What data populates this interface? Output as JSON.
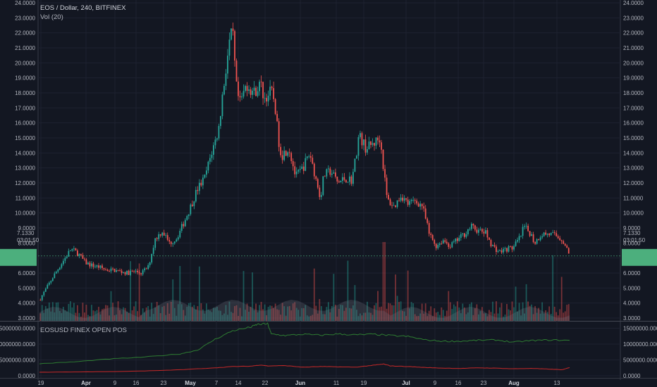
{
  "header": {
    "title": "EOS / Dollar, 240, BITFINEX",
    "indicator": "Vol (20)",
    "sub_indicator": "EOSUSD FINEX OPEN POS"
  },
  "price_labels": {
    "last_price": "7.1330",
    "countdown": "03:01:50"
  },
  "colors": {
    "up": "#26a69a",
    "down": "#ef5350",
    "background": "#131722",
    "grid": "#1e2230",
    "long_line": "#2e7d32",
    "short_line": "#c62828",
    "price_tag": "#4caf7d"
  },
  "chart_data": [
    {
      "type": "candlestick",
      "title": "EOS / Dollar, 240, BITFINEX",
      "y_ticks": [
        "3.0000",
        "4.0000",
        "5.0000",
        "6.0000",
        "7.0000",
        "8.0000",
        "9.0000",
        "10.0000",
        "11.0000",
        "12.0000",
        "13.0000",
        "14.0000",
        "15.0000",
        "16.0000",
        "17.0000",
        "18.0000",
        "19.0000",
        "20.0000",
        "21.0000",
        "22.0000",
        "23.0000",
        "24.0000"
      ],
      "x_ticks": [
        {
          "label": "19",
          "bold": false
        },
        {
          "label": "Apr",
          "bold": true
        },
        {
          "label": "9",
          "bold": false
        },
        {
          "label": "16",
          "bold": false
        },
        {
          "label": "23",
          "bold": false
        },
        {
          "label": "May",
          "bold": true
        },
        {
          "label": "7",
          "bold": false
        },
        {
          "label": "14",
          "bold": false
        },
        {
          "label": "22",
          "bold": false
        },
        {
          "label": "Jun",
          "bold": true
        },
        {
          "label": "11",
          "bold": false
        },
        {
          "label": "19",
          "bold": false
        },
        {
          "label": "Jul",
          "bold": true
        },
        {
          "label": "9",
          "bold": false
        },
        {
          "label": "16",
          "bold": false
        },
        {
          "label": "23",
          "bold": false
        },
        {
          "label": "Aug",
          "bold": true
        },
        {
          "label": "13",
          "bold": false
        }
      ],
      "ylim": [
        3.0,
        24.0
      ],
      "price_path": [
        [
          0,
          4.2
        ],
        [
          2,
          5.0
        ],
        [
          4,
          5.8
        ],
        [
          7,
          6.9
        ],
        [
          9,
          7.6
        ],
        [
          11,
          7.3
        ],
        [
          13,
          6.7
        ],
        [
          15,
          6.5
        ],
        [
          17,
          6.4
        ],
        [
          19,
          6.2
        ],
        [
          21,
          6.2
        ],
        [
          23,
          6.1
        ],
        [
          25,
          6.0
        ],
        [
          27,
          6.1
        ],
        [
          29,
          6.0
        ],
        [
          31,
          6.4
        ],
        [
          33,
          8.3
        ],
        [
          35,
          8.8
        ],
        [
          37,
          8.0
        ],
        [
          39,
          8.3
        ],
        [
          41,
          9.3
        ],
        [
          43,
          10.4
        ],
        [
          45,
          11.6
        ],
        [
          47,
          12.3
        ],
        [
          49,
          14.0
        ],
        [
          51,
          15.5
        ],
        [
          52,
          17.6
        ],
        [
          53,
          19.4
        ],
        [
          54,
          21.2
        ],
        [
          55,
          22.1
        ],
        [
          56,
          18.5
        ],
        [
          57,
          17.2
        ],
        [
          58,
          17.9
        ],
        [
          59,
          18.6
        ],
        [
          61,
          18.0
        ],
        [
          63,
          18.6
        ],
        [
          64,
          17.6
        ],
        [
          66,
          18.1
        ],
        [
          67,
          17.4
        ],
        [
          68,
          15.0
        ],
        [
          69,
          13.8
        ],
        [
          71,
          14.4
        ],
        [
          73,
          12.4
        ],
        [
          75,
          13.0
        ],
        [
          77,
          14.0
        ],
        [
          79,
          12.0
        ],
        [
          80,
          11.0
        ],
        [
          81,
          12.5
        ],
        [
          83,
          12.8
        ],
        [
          85,
          12.0
        ],
        [
          87,
          12.3
        ],
        [
          89,
          12.2
        ],
        [
          90,
          13.6
        ],
        [
          91,
          15.2
        ],
        [
          93,
          14.3
        ],
        [
          95,
          14.6
        ],
        [
          97,
          15.0
        ],
        [
          98,
          13.0
        ],
        [
          99,
          10.9
        ],
        [
          101,
          10.4
        ],
        [
          103,
          11.2
        ],
        [
          105,
          10.6
        ],
        [
          107,
          10.8
        ],
        [
          109,
          10.5
        ],
        [
          110,
          9.6
        ],
        [
          111,
          8.6
        ],
        [
          113,
          7.8
        ],
        [
          115,
          8.2
        ],
        [
          117,
          7.8
        ],
        [
          119,
          8.2
        ],
        [
          121,
          8.6
        ],
        [
          123,
          9.1
        ],
        [
          125,
          8.8
        ],
        [
          127,
          8.7
        ],
        [
          129,
          7.8
        ],
        [
          131,
          7.4
        ],
        [
          133,
          7.6
        ],
        [
          135,
          7.7
        ],
        [
          137,
          8.4
        ],
        [
          138,
          9.1
        ],
        [
          140,
          8.6
        ],
        [
          141,
          8.0
        ],
        [
          143,
          8.6
        ],
        [
          145,
          8.6
        ],
        [
          147,
          8.5
        ],
        [
          149,
          8.2
        ],
        [
          150,
          7.7
        ],
        [
          151,
          7.1
        ]
      ]
    },
    {
      "type": "line",
      "title": "EOSUSD FINEX OPEN POS",
      "y_ticks": [
        "0.0000",
        "5000000.0000",
        "10000000.0000",
        "15000000.0000"
      ],
      "ylim": [
        0,
        16000000
      ],
      "series": [
        {
          "values": [
            [
              0,
              3800000
            ],
            [
              10,
              4400000
            ],
            [
              20,
              5300000
            ],
            [
              30,
              5900000
            ],
            [
              40,
              6900000
            ],
            [
              45,
              8100000
            ],
            [
              50,
              11500000
            ],
            [
              55,
              14200000
            ],
            [
              60,
              15300000
            ],
            [
              62,
              16200000
            ],
            [
              65,
              16400000
            ],
            [
              66,
              13200000
            ],
            [
              70,
              12700000
            ],
            [
              75,
              13100000
            ],
            [
              80,
              12800000
            ],
            [
              85,
              13200000
            ],
            [
              90,
              12900000
            ],
            [
              95,
              13100000
            ],
            [
              100,
              12700000
            ],
            [
              105,
              12400000
            ],
            [
              110,
              11300000
            ],
            [
              115,
              10900000
            ],
            [
              120,
              10900000
            ],
            [
              125,
              11200000
            ],
            [
              130,
              11300000
            ],
            [
              135,
              10600000
            ],
            [
              140,
              11100000
            ],
            [
              145,
              11300000
            ],
            [
              151,
              11200000
            ]
          ]
        },
        {
          "values": [
            [
              0,
              1100000
            ],
            [
              10,
              1200000
            ],
            [
              20,
              1300000
            ],
            [
              30,
              1500000
            ],
            [
              40,
              1900000
            ],
            [
              50,
              2500000
            ],
            [
              55,
              2900000
            ],
            [
              60,
              3000000
            ],
            [
              63,
              3400000
            ],
            [
              65,
              3100000
            ],
            [
              70,
              3200000
            ],
            [
              75,
              2700000
            ],
            [
              80,
              2900000
            ],
            [
              85,
              2800000
            ],
            [
              90,
              2700000
            ],
            [
              95,
              3300000
            ],
            [
              98,
              3700000
            ],
            [
              100,
              3100000
            ],
            [
              105,
              2900000
            ],
            [
              110,
              2600000
            ],
            [
              115,
              2400000
            ],
            [
              120,
              2300000
            ],
            [
              125,
              2500000
            ],
            [
              130,
              2400000
            ],
            [
              135,
              2200000
            ],
            [
              140,
              2300000
            ],
            [
              145,
              2100000
            ],
            [
              149,
              1900000
            ],
            [
              151,
              2600000
            ]
          ]
        }
      ]
    }
  ]
}
